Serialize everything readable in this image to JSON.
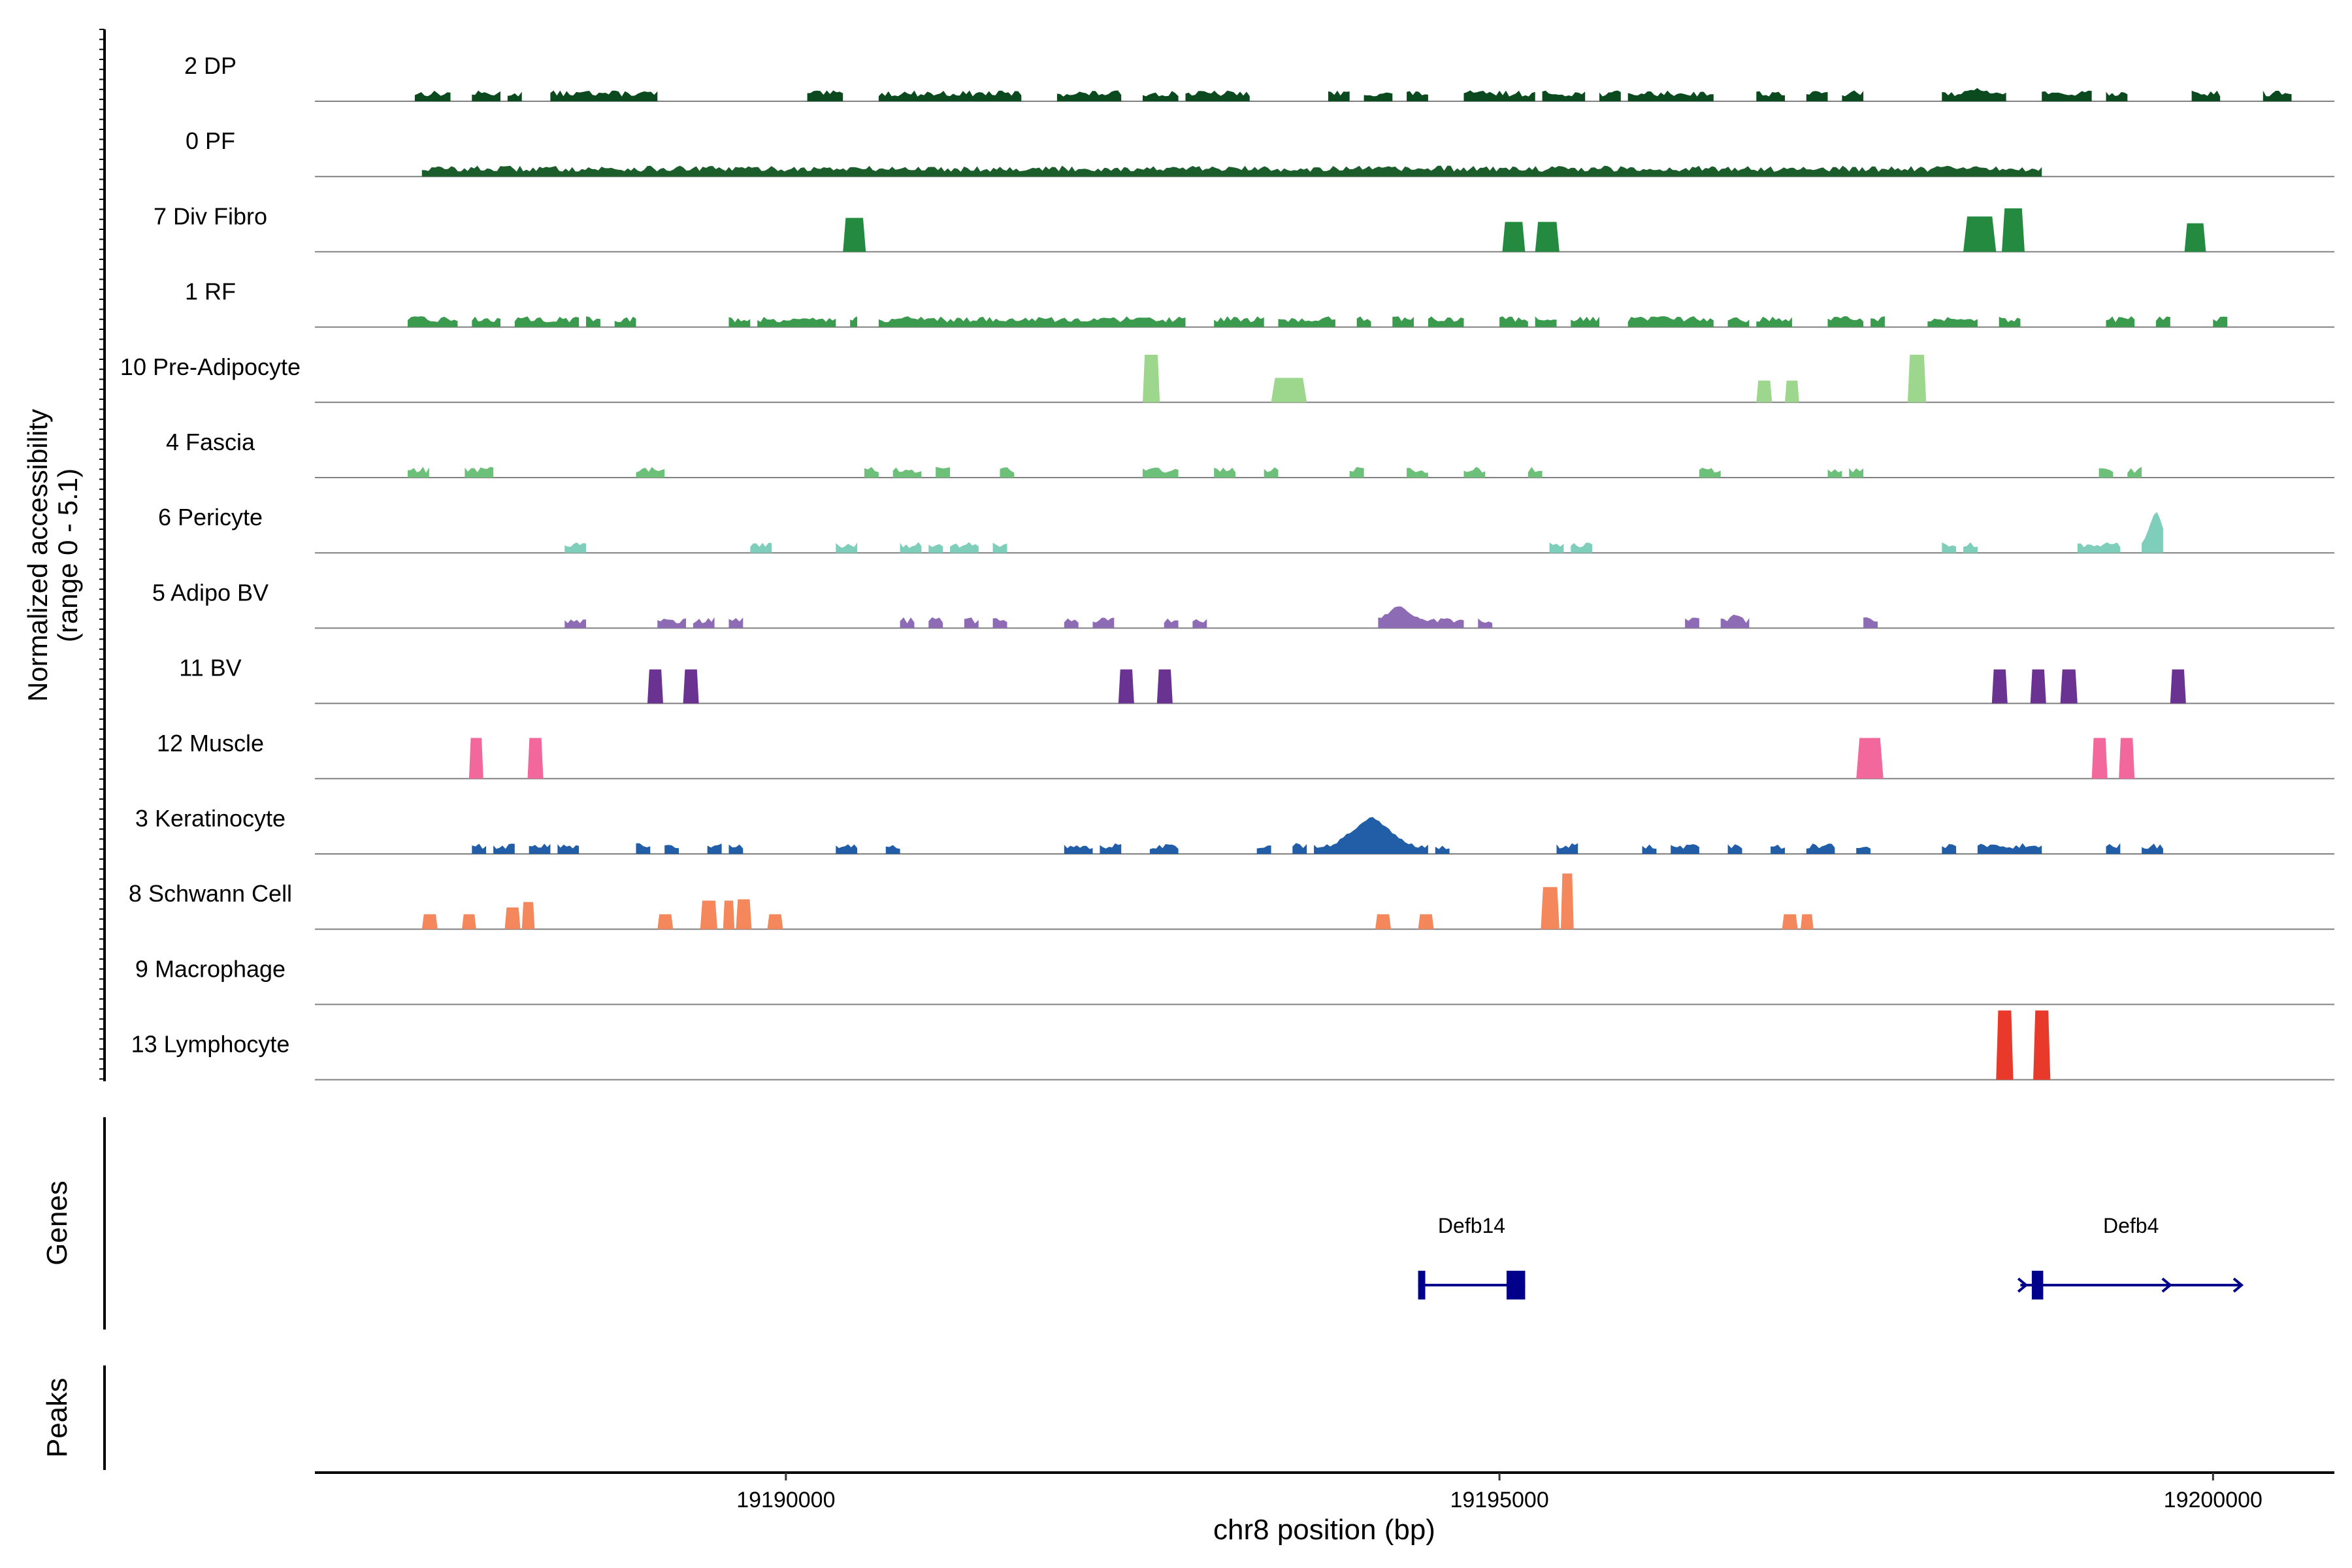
{
  "chart_data": {
    "type": "genome-track",
    "xlabel": "chr8 position (bp)",
    "xlim": [
      19186700,
      19200850
    ],
    "xticks": [
      {
        "value": 19190000,
        "label": "19190000"
      },
      {
        "value": 19195000,
        "label": "19195000"
      },
      {
        "value": 19200000,
        "label": "19200000"
      }
    ],
    "ylabel_line1": "Normalized accessibility",
    "ylabel_line2": "(range 0 - 5.1)",
    "y_range": [
      0,
      5.1
    ],
    "panels": {
      "genes": "Genes",
      "peaks": "Peaks"
    },
    "tracks": [
      {
        "name": "2 DP",
        "color": "#0b4a1f",
        "mode": "dense",
        "regions": [
          [
            19187400,
            19187650
          ],
          [
            19187800,
            19188000
          ],
          [
            19188050,
            19188150
          ],
          [
            19188350,
            19189100
          ],
          [
            19190150,
            19190400
          ],
          [
            19190650,
            19191650
          ],
          [
            19191900,
            19192350
          ],
          [
            19192500,
            19192750
          ],
          [
            19192800,
            19193250
          ],
          [
            19193800,
            19193950
          ],
          [
            19194050,
            19194250
          ],
          [
            19194350,
            19194500
          ],
          [
            19194750,
            19195250
          ],
          [
            19195300,
            19195600
          ],
          [
            19195700,
            19195850
          ],
          [
            19195900,
            19196500
          ],
          [
            19196800,
            19197000
          ],
          [
            19197150,
            19197300
          ],
          [
            19197400,
            19197550
          ],
          [
            19198100,
            19198550
          ],
          [
            19198800,
            19199150
          ],
          [
            19199250,
            19199400
          ],
          [
            19199850,
            19200050
          ],
          [
            19200350,
            19200550
          ]
        ],
        "peaks": [
          [
            19188550,
            19188650,
            0.55
          ],
          [
            19198250,
            19198450,
            0.85
          ],
          [
            19198850,
            19198950,
            0.6
          ]
        ]
      },
      {
        "name": "0 PF",
        "color": "#1b5e2b",
        "mode": "dense",
        "regions": [
          [
            19187450,
            19198800
          ]
        ],
        "peaks": []
      },
      {
        "name": "7 Div Fibro",
        "color": "#238a40",
        "mode": "blocks",
        "regions": [
          [
            19190400,
            19190560
          ],
          [
            19195020,
            19195180
          ],
          [
            19195250,
            19195420
          ],
          [
            19198250,
            19198480
          ],
          [
            19198520,
            19198680
          ],
          [
            19199800,
            19199950
          ]
        ],
        "heights": [
          2.5,
          2.2,
          2.2,
          2.6,
          3.2,
          2.1
        ]
      },
      {
        "name": "1 RF",
        "color": "#3a9a4e",
        "mode": "dense",
        "regions": [
          [
            19187350,
            19187700
          ],
          [
            19187800,
            19188000
          ],
          [
            19188100,
            19188550
          ],
          [
            19188600,
            19188700
          ],
          [
            19188800,
            19188950
          ],
          [
            19189600,
            19189750
          ],
          [
            19189800,
            19190350
          ],
          [
            19190450,
            19190500
          ],
          [
            19190650,
            19192800
          ],
          [
            19193000,
            19193350
          ],
          [
            19193450,
            19193850
          ],
          [
            19194000,
            19194100
          ],
          [
            19194250,
            19194400
          ],
          [
            19194500,
            19194750
          ],
          [
            19195000,
            19195200
          ],
          [
            19195250,
            19195400
          ],
          [
            19195500,
            19195700
          ],
          [
            19195900,
            19196500
          ],
          [
            19196600,
            19196750
          ],
          [
            19196800,
            19197050
          ],
          [
            19197300,
            19197550
          ],
          [
            19197600,
            19197700
          ],
          [
            19198000,
            19198350
          ],
          [
            19198500,
            19198650
          ],
          [
            19199250,
            19199450
          ],
          [
            19199600,
            19199700
          ],
          [
            19200000,
            19200100
          ]
        ],
        "peaks": [
          [
            19190700,
            19190950,
            0.5
          ],
          [
            19192050,
            19192400,
            0.5
          ],
          [
            19192700,
            19192850,
            0.4
          ]
        ]
      },
      {
        "name": "10 Pre-Adipocyte",
        "color": "#9dd68d",
        "mode": "blocks",
        "regions": [
          [
            19192500,
            19192620
          ],
          [
            19193400,
            19193650
          ],
          [
            19196800,
            19196910
          ],
          [
            19197000,
            19197100
          ],
          [
            19197860,
            19197990
          ]
        ],
        "heights": [
          3.5,
          1.8,
          1.6,
          1.6,
          3.5
        ]
      },
      {
        "name": "4 Fascia",
        "color": "#6cc07a",
        "mode": "dense",
        "regions": [
          [
            19187350,
            19187500
          ],
          [
            19187750,
            19187950
          ],
          [
            19188950,
            19189150
          ],
          [
            19190550,
            19190650
          ],
          [
            19190750,
            19190950
          ],
          [
            19191050,
            19191150
          ],
          [
            19191500,
            19191600
          ],
          [
            19192500,
            19192750
          ],
          [
            19193000,
            19193150
          ],
          [
            19193350,
            19193450
          ],
          [
            19193950,
            19194050
          ],
          [
            19194350,
            19194500
          ],
          [
            19194750,
            19194900
          ],
          [
            19195200,
            19195300
          ],
          [
            19196400,
            19196550
          ],
          [
            19197300,
            19197400
          ],
          [
            19197450,
            19197550
          ],
          [
            19199200,
            19199300
          ],
          [
            19199400,
            19199500
          ]
        ],
        "peaks": [
          [
            19192550,
            19192650,
            0.6
          ]
        ]
      },
      {
        "name": "6 Pericyte",
        "color": "#7fcdbb",
        "mode": "dense",
        "regions": [
          [
            19188450,
            19188600
          ],
          [
            19189750,
            19189900
          ],
          [
            19190350,
            19190500
          ],
          [
            19190800,
            19190950
          ],
          [
            19191000,
            19191100
          ],
          [
            19191150,
            19191350
          ],
          [
            19191450,
            19191550
          ],
          [
            19195350,
            19195450
          ],
          [
            19195500,
            19195650
          ],
          [
            19198100,
            19198200
          ],
          [
            19198250,
            19198350
          ],
          [
            19199050,
            19199350
          ],
          [
            19199500,
            19199650
          ]
        ],
        "peaks": [
          [
            19199550,
            19199650,
            3.1
          ]
        ]
      },
      {
        "name": "5 Adipo BV",
        "color": "#8e6bb5",
        "mode": "dense",
        "regions": [
          [
            19188450,
            19188600
          ],
          [
            19189100,
            19189300
          ],
          [
            19189350,
            19189500
          ],
          [
            19189600,
            19189700
          ],
          [
            19190800,
            19190900
          ],
          [
            19191000,
            19191100
          ],
          [
            19191250,
            19191350
          ],
          [
            19191450,
            19191550
          ],
          [
            19191950,
            19192050
          ],
          [
            19192150,
            19192300
          ],
          [
            19192650,
            19192750
          ],
          [
            19192850,
            19192950
          ],
          [
            19194150,
            19194450
          ],
          [
            19194450,
            19194750
          ],
          [
            19194850,
            19194950
          ],
          [
            19196300,
            19196400
          ],
          [
            19196550,
            19196750
          ],
          [
            19197550,
            19197650
          ]
        ],
        "peaks": [
          [
            19194200,
            19194400,
            1.6
          ],
          [
            19196600,
            19196700,
            1.0
          ]
        ]
      },
      {
        "name": "11 BV",
        "color": "#6a3291",
        "mode": "blocks",
        "regions": [
          [
            19189030,
            19189140
          ],
          [
            19189280,
            19189390
          ],
          [
            19192330,
            19192440
          ],
          [
            19192600,
            19192710
          ],
          [
            19198450,
            19198560
          ],
          [
            19198720,
            19198830
          ],
          [
            19198930,
            19199050
          ],
          [
            19199700,
            19199810
          ]
        ],
        "heights": [
          2.5,
          2.5,
          2.5,
          2.5,
          2.5,
          2.5,
          2.5,
          2.5
        ]
      },
      {
        "name": "12 Muscle",
        "color": "#f2679c",
        "mode": "blocks",
        "regions": [
          [
            19187780,
            19187880
          ],
          [
            19188190,
            19188300
          ],
          [
            19197500,
            19197690
          ],
          [
            19199150,
            19199260
          ],
          [
            19199340,
            19199450
          ]
        ],
        "heights": [
          3.0,
          3.0,
          3.0,
          3.0,
          3.0
        ]
      },
      {
        "name": "3 Keratinocyte",
        "color": "#225ea8",
        "mode": "dense",
        "regions": [
          [
            19187800,
            19187900
          ],
          [
            19187950,
            19188100
          ],
          [
            19188200,
            19188350
          ],
          [
            19188400,
            19188550
          ],
          [
            19188950,
            19189050
          ],
          [
            19189150,
            19189250
          ],
          [
            19189450,
            19189550
          ],
          [
            19189600,
            19189700
          ],
          [
            19190350,
            19190500
          ],
          [
            19190700,
            19190800
          ],
          [
            19191950,
            19192150
          ],
          [
            19192200,
            19192350
          ],
          [
            19192550,
            19192750
          ],
          [
            19193300,
            19193400
          ],
          [
            19193550,
            19193650
          ],
          [
            19193700,
            19194500
          ],
          [
            19194550,
            19194650
          ],
          [
            19195400,
            19195550
          ],
          [
            19196000,
            19196100
          ],
          [
            19196200,
            19196400
          ],
          [
            19196600,
            19196700
          ],
          [
            19196900,
            19197000
          ],
          [
            19197150,
            19197350
          ],
          [
            19197500,
            19197600
          ],
          [
            19198100,
            19198200
          ],
          [
            19198350,
            19198800
          ],
          [
            19199250,
            19199350
          ],
          [
            19199500,
            19199650
          ]
        ],
        "peaks": [
          [
            19193950,
            19194250,
            2.7
          ],
          [
            19194050,
            19194150,
            1.2
          ]
        ]
      },
      {
        "name": "8 Schwann Cell",
        "color": "#f4875b",
        "mode": "blocks",
        "regions": [
          [
            19187450,
            19187560
          ],
          [
            19187730,
            19187830
          ],
          [
            19188030,
            19188140
          ],
          [
            19188150,
            19188240
          ],
          [
            19189100,
            19189210
          ],
          [
            19189400,
            19189520
          ],
          [
            19189560,
            19189640
          ],
          [
            19189650,
            19189760
          ],
          [
            19189870,
            19189980
          ],
          [
            19194130,
            19194240
          ],
          [
            19194430,
            19194540
          ],
          [
            19195290,
            19195420
          ],
          [
            19195430,
            19195520
          ],
          [
            19196980,
            19197090
          ],
          [
            19197110,
            19197200
          ]
        ],
        "heights": [
          1.1,
          1.1,
          1.6,
          2.0,
          1.1,
          2.1,
          2.1,
          2.2,
          1.1,
          1.1,
          1.1,
          3.1,
          4.1,
          1.1,
          1.1
        ]
      },
      {
        "name": "9 Macrophage",
        "color": "#d7301f",
        "mode": "blocks",
        "regions": [],
        "heights": []
      },
      {
        "name": "13 Lymphocyte",
        "color": "#e8392b",
        "mode": "blocks",
        "regions": [
          [
            19198480,
            19198600
          ],
          [
            19198740,
            19198860
          ]
        ],
        "heights": [
          5.1,
          5.1
        ]
      }
    ],
    "genes": [
      {
        "name": "Defb14",
        "start": 19194430,
        "end": 19195180,
        "strand": "+",
        "exons": [
          [
            19194430,
            19194480
          ],
          [
            19195050,
            19195180
          ]
        ],
        "color": "#00008b",
        "arrows": []
      },
      {
        "name": "Defb4",
        "start": 19198650,
        "end": 19200200,
        "strand": "+",
        "exons": [
          [
            19198730,
            19198810
          ]
        ],
        "color": "#00008b",
        "arrows": [
          19198690,
          19199700,
          19200200
        ]
      }
    ]
  }
}
